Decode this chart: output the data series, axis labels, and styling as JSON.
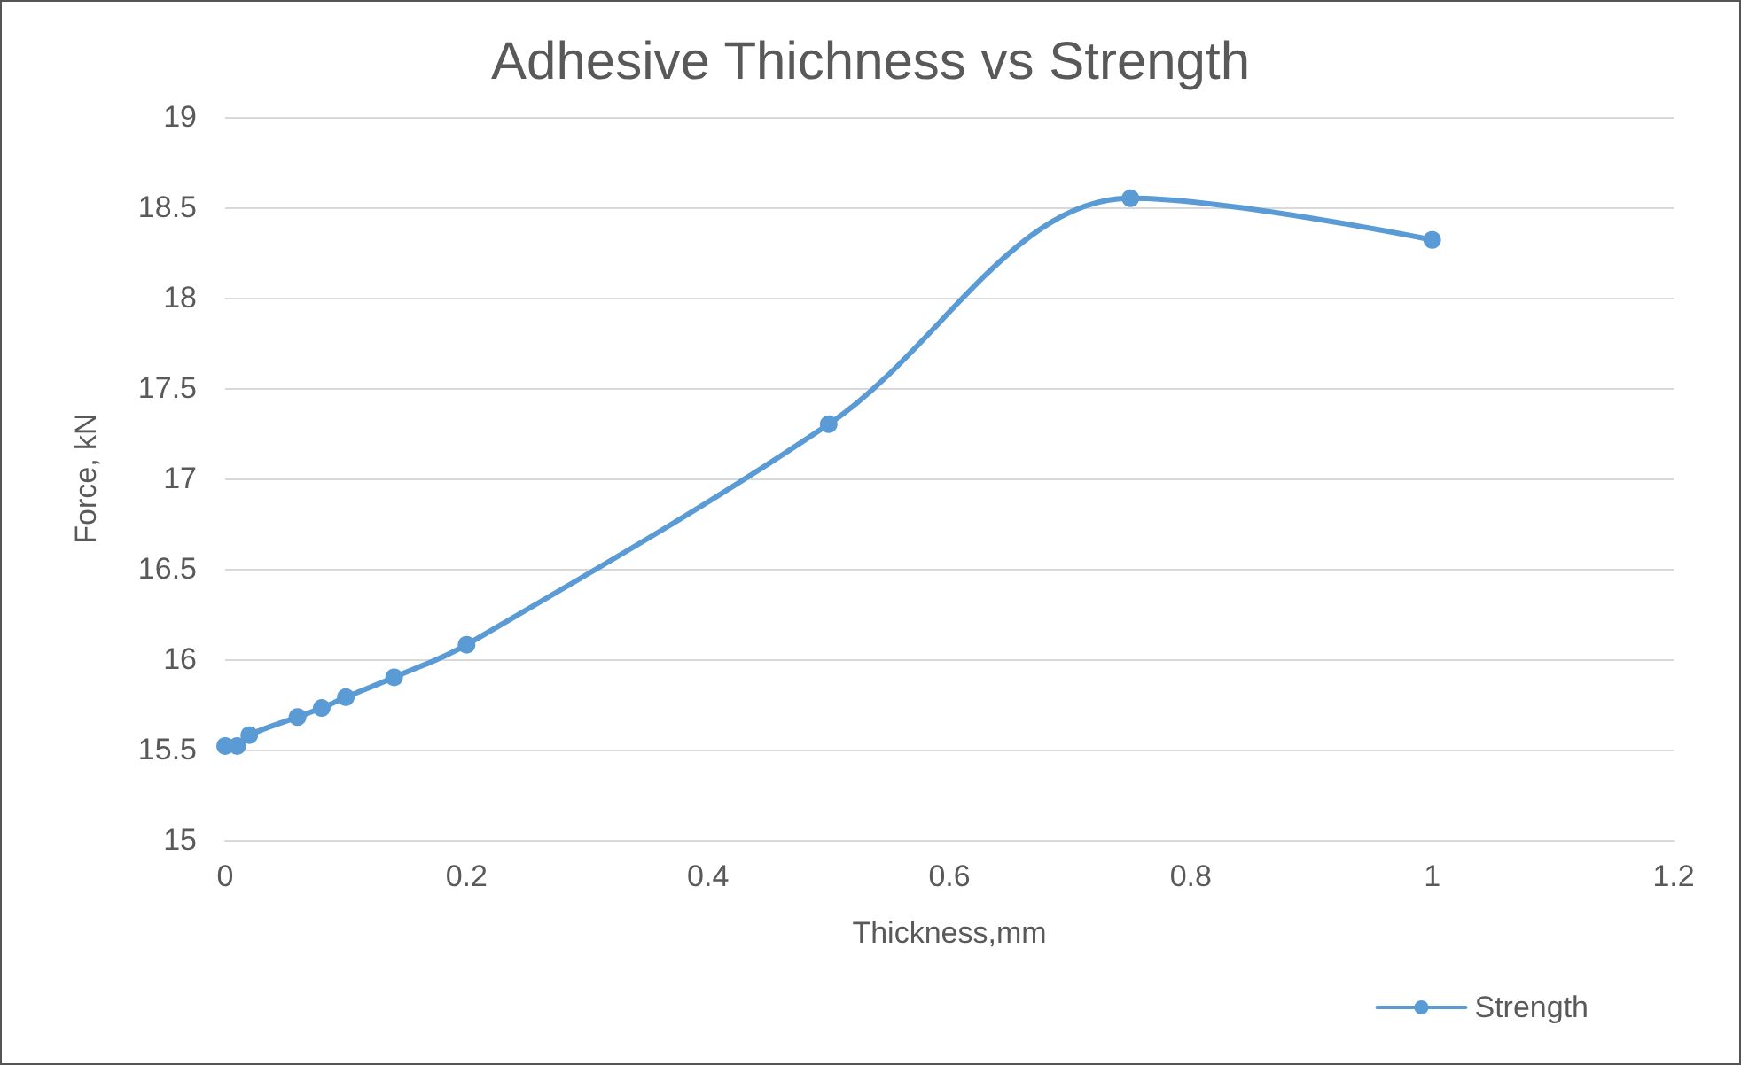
{
  "chart_data": {
    "type": "line",
    "title": "Adhesive Thichness vs Strength",
    "xlabel": "Thickness,mm",
    "ylabel": "Force, kN",
    "x": [
      0,
      0.01,
      0.02,
      0.06,
      0.08,
      0.1,
      0.14,
      0.2,
      0.5,
      0.75,
      1.0
    ],
    "series": [
      {
        "name": "Strength",
        "color": "#5b9bd5",
        "values": [
          15.52,
          15.52,
          15.58,
          15.68,
          15.73,
          15.79,
          15.9,
          16.08,
          17.3,
          18.55,
          18.32
        ]
      }
    ],
    "xlim": [
      0,
      1.2
    ],
    "xticks": [
      0,
      0.2,
      0.4,
      0.6,
      0.8,
      1,
      1.2
    ],
    "ylim": [
      15,
      19
    ],
    "yticks": [
      15,
      15.5,
      16,
      16.5,
      17,
      17.5,
      18,
      18.5,
      19
    ],
    "grid": "y",
    "legend": "bottom right",
    "marker": "circle",
    "line_style": "solid"
  }
}
